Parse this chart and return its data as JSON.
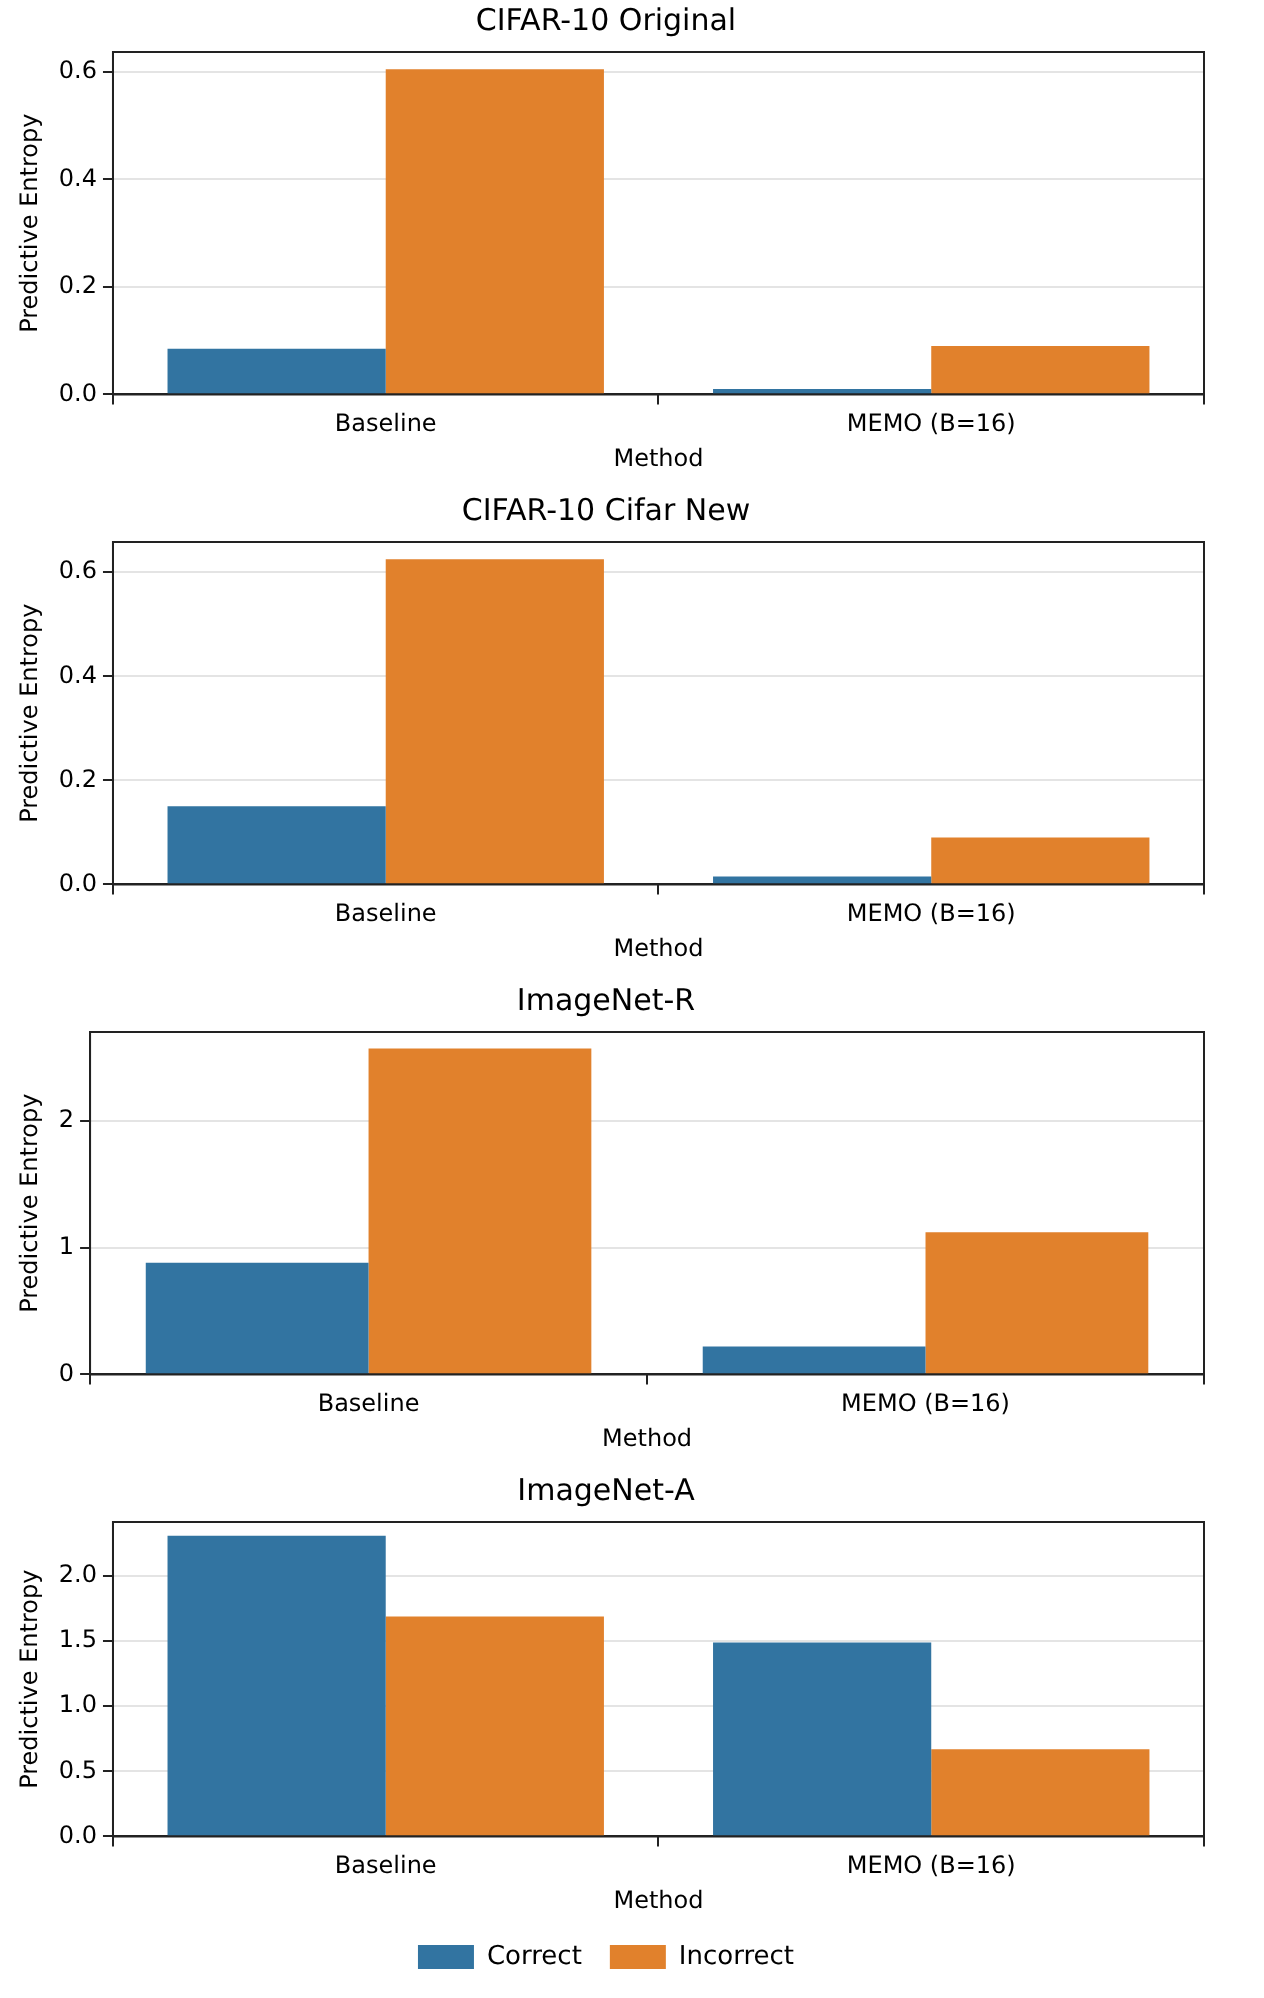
{
  "chart_data": [
    {
      "type": "bar",
      "title": "CIFAR-10 Original",
      "xlabel": "Method",
      "ylabel": "Predictive Entropy",
      "categories": [
        "Baseline",
        "MEMO (B=16)"
      ],
      "series": [
        {
          "color": "#3274a1",
          "values": [
            0.085,
            0.01
          ]
        },
        {
          "color": "#e1812c",
          "values": [
            0.605,
            0.09
          ]
        }
      ],
      "ylim": [
        0,
        0.637
      ],
      "yticks": [
        {
          "value": 0,
          "label": "0.0"
        },
        0.2,
        0.4,
        0.6
      ],
      "grid": "y",
      "legend": false
    },
    {
      "type": "bar",
      "title": "CIFAR-10 Cifar New",
      "xlabel": "Method",
      "ylabel": "Predictive Entropy",
      "categories": [
        "Baseline",
        "MEMO (B=16)"
      ],
      "series": [
        {
          "color": "#3274a1",
          "values": [
            0.15,
            0.015
          ]
        },
        {
          "color": "#e1812c",
          "values": [
            0.625,
            0.09
          ]
        }
      ],
      "ylim": [
        0,
        0.658
      ],
      "yticks": [
        {
          "value": 0,
          "label": "0.0"
        },
        0.2,
        0.4,
        0.6
      ],
      "grid": "y",
      "legend": false
    },
    {
      "type": "bar",
      "title": "ImageNet-R",
      "xlabel": "Method",
      "ylabel": "Predictive Entropy",
      "categories": [
        "Baseline",
        "MEMO (B=16)"
      ],
      "series": [
        {
          "color": "#3274a1",
          "values": [
            0.88,
            0.22
          ]
        },
        {
          "color": "#e1812c",
          "values": [
            2.57,
            1.12
          ]
        }
      ],
      "ylim": [
        0,
        2.7
      ],
      "yticks": [
        0,
        1,
        2
      ],
      "grid": "y",
      "legend": false
    },
    {
      "type": "bar",
      "title": "ImageNet-A",
      "xlabel": "Method",
      "ylabel": "Predictive Entropy",
      "categories": [
        "Baseline",
        "MEMO (B=16)"
      ],
      "series": [
        {
          "name": "Correct",
          "color": "#3274a1",
          "values": [
            2.31,
            1.49
          ]
        },
        {
          "name": "Incorrect",
          "color": "#e1812c",
          "values": [
            1.69,
            0.67
          ]
        }
      ],
      "ylim": [
        0,
        2.415
      ],
      "yticks": [
        {
          "value": 0,
          "label": "0.0"
        },
        0.5,
        {
          "value": 1,
          "label": "1.0"
        },
        1.5,
        {
          "value": 2,
          "label": "2.0"
        }
      ],
      "grid": "y",
      "legend": "bottom"
    }
  ]
}
